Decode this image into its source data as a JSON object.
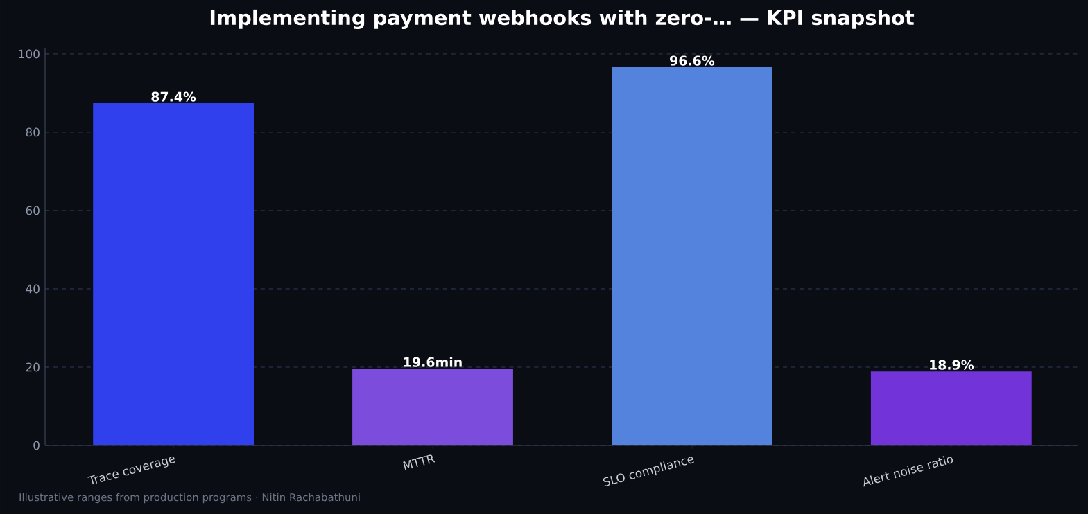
{
  "chart_data": {
    "type": "bar",
    "title": "Implementing payment webhooks with zero-… — KPI snapshot",
    "categories": [
      "Trace coverage",
      "MTTR",
      "SLO compliance",
      "Alert noise ratio"
    ],
    "values": [
      87.4,
      19.6,
      96.6,
      18.9
    ],
    "colors": [
      "#2f40ec",
      "#7c4ddd",
      "#5483de",
      "#7234d8"
    ],
    "value_labels": [
      "87.4%",
      "19.6min",
      "96.6%",
      "18.9%"
    ],
    "ylim": [
      0,
      101.4
    ],
    "yticks": [
      0,
      20,
      40,
      60,
      80,
      100
    ],
    "grid": "y",
    "annotations": [
      "Illustrative ranges from production programs · Nitin Rachabathuni"
    ]
  }
}
